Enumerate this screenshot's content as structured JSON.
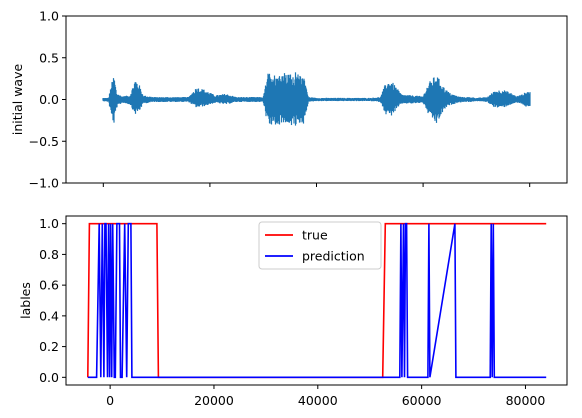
{
  "chart_data": [
    {
      "type": "line",
      "ylabel": "initial wave",
      "xlim": [
        -7000,
        87000
      ],
      "ylim": [
        -1.0,
        1.0
      ],
      "yticks": [
        -1.0,
        -0.5,
        0.0,
        0.5,
        1.0
      ],
      "ytick_labels": [
        "−1.0",
        "−0.5",
        "0.0",
        "0.5",
        "1.0"
      ],
      "xticks": [
        0,
        20000,
        40000,
        60000,
        80000
      ],
      "xtick_labels_shown": false,
      "grid": false,
      "color": "#1f77b4",
      "signal_range": [
        0,
        80000
      ],
      "envelope": {
        "x": [
          0,
          1000,
          1500,
          2000,
          2500,
          3500,
          5000,
          6000,
          6800,
          7500,
          8500,
          9500,
          11000,
          14000,
          16000,
          17500,
          19000,
          21000,
          23000,
          25000,
          27000,
          30000,
          31000,
          32000,
          36000,
          38500,
          40000,
          42000,
          45000,
          50000,
          52000,
          53000,
          54000,
          56000,
          58000,
          60000,
          61000,
          62500,
          64000,
          65000,
          66500,
          67500,
          69000,
          70000,
          72000,
          73500,
          75000,
          76500,
          77500,
          78500,
          79500,
          80000
        ],
        "upper": [
          0.02,
          0.02,
          0.18,
          0.3,
          0.08,
          0.04,
          0.05,
          0.25,
          0.17,
          0.05,
          0.04,
          0.03,
          0.03,
          0.03,
          0.03,
          0.15,
          0.12,
          0.05,
          0.07,
          0.03,
          0.03,
          0.03,
          0.05,
          0.12,
          0.03,
          0.03,
          0.02,
          0.02,
          0.02,
          0.02,
          0.03,
          0.2,
          0.23,
          0.06,
          0.05,
          0.04,
          0.2,
          0.3,
          0.14,
          0.08,
          0.04,
          0.03,
          0.03,
          0.02,
          0.03,
          0.11,
          0.12,
          0.08,
          0.04,
          0.06,
          0.1,
          0.1
        ],
        "lower": [
          -0.02,
          -0.03,
          -0.2,
          -0.3,
          -0.1,
          -0.04,
          -0.06,
          -0.18,
          -0.14,
          -0.05,
          -0.04,
          -0.03,
          -0.03,
          -0.03,
          -0.03,
          -0.1,
          -0.08,
          -0.04,
          -0.06,
          -0.03,
          -0.03,
          -0.03,
          -0.05,
          -0.12,
          -0.03,
          -0.03,
          -0.02,
          -0.02,
          -0.02,
          -0.02,
          -0.03,
          -0.18,
          -0.2,
          -0.05,
          -0.05,
          -0.04,
          -0.18,
          -0.3,
          -0.12,
          -0.07,
          -0.04,
          -0.03,
          -0.03,
          -0.02,
          -0.03,
          -0.1,
          -0.1,
          -0.06,
          -0.04,
          -0.05,
          -0.1,
          -0.1
        ]
      },
      "loud_segment": {
        "x_range": [
          30000,
          38500
        ],
        "upper": 0.33,
        "lower": -0.33
      }
    },
    {
      "type": "line",
      "ylabel": "lables",
      "xlim": [
        -8500,
        88000
      ],
      "ylim": [
        -0.05,
        1.05
      ],
      "yticks": [
        0.0,
        0.2,
        0.4,
        0.6,
        0.8,
        1.0
      ],
      "ytick_labels": [
        "0.0",
        "0.2",
        "0.4",
        "0.6",
        "0.8",
        "1.0"
      ],
      "xticks": [
        0,
        20000,
        40000,
        60000,
        80000
      ],
      "xtick_labels": [
        "0",
        "20000",
        "40000",
        "60000",
        "80000"
      ],
      "grid": false,
      "legend_position": "top-center",
      "series": [
        {
          "name": "true",
          "color": "#ff0000",
          "x": [
            -4300,
            -4000,
            9000,
            9300,
            52500,
            53000,
            84000
          ],
          "y": [
            0,
            1,
            1,
            0,
            0,
            1,
            1
          ]
        },
        {
          "name": "prediction",
          "color": "#0000ff",
          "x": [
            -4300,
            -2600,
            -2100,
            -1800,
            -1500,
            -1200,
            -1000,
            -800,
            -500,
            -300,
            -100,
            100,
            300,
            500,
            800,
            1000,
            1300,
            1800,
            2000,
            2300,
            2800,
            3200,
            3500,
            4000,
            4200,
            55800,
            56000,
            56200,
            56500,
            56700,
            56900,
            57100,
            57300,
            61200,
            61400,
            61600,
            66400,
            66600,
            73200,
            73400,
            73600,
            73800,
            74000,
            84000
          ],
          "y": [
            0,
            0,
            1,
            0,
            1,
            0,
            1,
            1,
            0,
            1,
            0,
            1,
            0,
            1,
            0,
            0,
            1,
            1,
            0,
            0,
            1,
            0,
            1,
            1,
            0,
            0,
            1,
            0,
            1,
            0,
            1,
            1,
            0,
            0,
            1,
            0,
            1,
            0,
            0,
            1,
            0,
            1,
            0,
            0
          ]
        }
      ]
    }
  ]
}
